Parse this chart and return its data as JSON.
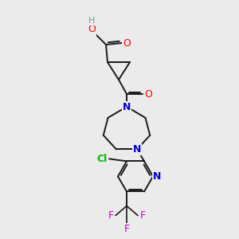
{
  "bg_color": "#ebebeb",
  "bond_color": "#1a1a1a",
  "atoms": {
    "H": "#5f9ea0",
    "O": "#ff0000",
    "N": "#0000cc",
    "Cl": "#00bb00",
    "F": "#cc00cc",
    "C": "#1a1a1a"
  }
}
